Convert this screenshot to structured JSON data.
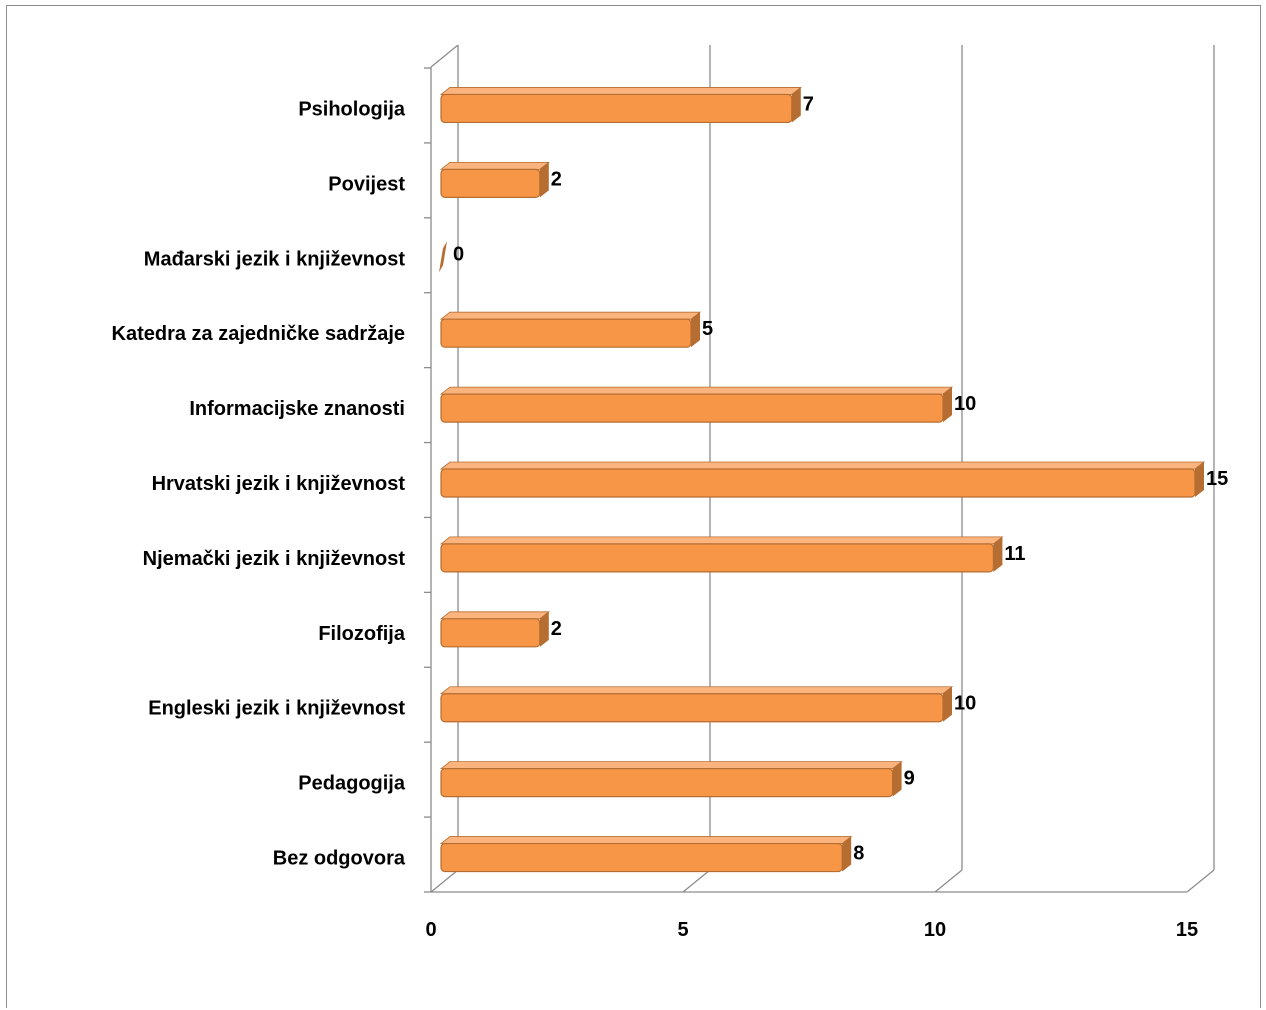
{
  "chart_data": {
    "type": "bar",
    "orientation": "horizontal",
    "style": "3d",
    "categories": [
      "Psihologija",
      "Povijest",
      "Mađarski jezik i književnost",
      "Katedra za zajedničke sadržaje",
      "Informacijske znanosti",
      "Hrvatski jezik i književnost",
      "Njemački jezik i književnost",
      "Filozofija",
      "Engleski jezik i književnost",
      "Pedagogija",
      "Bez odgovora"
    ],
    "values": [
      7,
      2,
      0,
      5,
      10,
      15,
      11,
      2,
      10,
      9,
      8
    ],
    "xlim": [
      0,
      15
    ],
    "xticks": [
      "0",
      "5",
      "10",
      "15"
    ],
    "grid": "vertical",
    "legend": "none",
    "title": "",
    "xlabel": "",
    "ylabel": "",
    "colors": {
      "bar": "#F79646",
      "bar_dark": "#B66D31",
      "bar_top": "#FBB47E",
      "grid": "#8c8c8c",
      "text": "#000000"
    }
  }
}
